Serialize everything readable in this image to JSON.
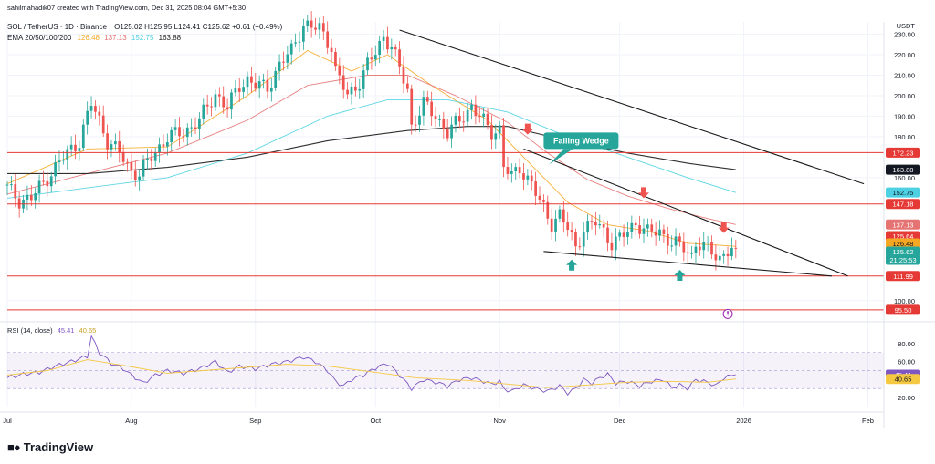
{
  "header": {
    "author_line": "sahilmahadik07 created with TradingView.com, Dec 31, 2025 08:04 GMT+5:30",
    "symbol_line": "SOL / TetherUS · 1D · Binance",
    "ohlc": "O125.02 H125.95 L124.41 C125.62 +0.61 (+0.49%)",
    "ema_label": "EMA 20/50/100/200",
    "ema_values": [
      "126.48",
      "137.13",
      "152.75",
      "163.88"
    ]
  },
  "logo_text": "TradingView",
  "colors": {
    "up": "#26a69a",
    "down": "#ef5350",
    "ema20": "#f5a623",
    "ema50": "#e57373",
    "ema100": "#4dd0e1",
    "ema200": "#1a1a1a",
    "hline": "#e53935",
    "wedge": "#1a1a1a",
    "rsi": "#7e57c2",
    "rsi_ma": "#f5c842",
    "callout": "#26a69a"
  },
  "chart_data": [
    {
      "type": "candlestick",
      "title": "SOL / TetherUS · 1D · Binance",
      "currency": "USDT",
      "x_tick_labels": [
        "Jul",
        "Aug",
        "Sep",
        "Oct",
        "Nov",
        "Dec",
        "2026",
        "Feb"
      ],
      "y_tick_labels": [
        "230.00",
        "220.00",
        "210.00",
        "200.00",
        "190.00",
        "180.00",
        "160.00",
        "100.00"
      ],
      "ylim": [
        91,
        236
      ],
      "x_range_days": [
        0,
        219
      ],
      "x_month_starts": {
        "Jul": 0,
        "Aug": 31,
        "Sep": 62,
        "Oct": 92,
        "Nov": 123,
        "Dec": 153,
        "2026": 184,
        "Feb": 215
      },
      "price_anchors": [
        [
          0,
          155
        ],
        [
          3,
          149
        ],
        [
          6,
          150
        ],
        [
          10,
          160
        ],
        [
          14,
          170
        ],
        [
          18,
          178
        ],
        [
          21,
          196
        ],
        [
          23,
          188
        ],
        [
          25,
          178
        ],
        [
          28,
          172
        ],
        [
          31,
          163
        ],
        [
          33,
          162
        ],
        [
          36,
          170
        ],
        [
          40,
          180
        ],
        [
          44,
          182
        ],
        [
          48,
          188
        ],
        [
          52,
          201
        ],
        [
          55,
          194
        ],
        [
          58,
          205
        ],
        [
          60,
          208
        ],
        [
          62,
          205
        ],
        [
          65,
          204
        ],
        [
          68,
          215
        ],
        [
          71,
          222
        ],
        [
          74,
          235
        ],
        [
          76,
          233
        ],
        [
          78,
          233
        ],
        [
          81,
          224
        ],
        [
          82,
          212
        ],
        [
          85,
          200
        ],
        [
          88,
          207
        ],
        [
          90,
          215
        ],
        [
          92,
          221
        ],
        [
          94,
          229
        ],
        [
          96,
          224
        ],
        [
          98,
          213
        ],
        [
          100,
          203
        ],
        [
          101,
          185
        ],
        [
          104,
          196
        ],
        [
          107,
          190
        ],
        [
          110,
          182
        ],
        [
          113,
          188
        ],
        [
          116,
          195
        ],
        [
          119,
          187
        ],
        [
          121,
          182
        ],
        [
          123,
          184
        ],
        [
          124,
          166
        ],
        [
          126,
          160
        ],
        [
          128,
          165
        ],
        [
          131,
          157
        ],
        [
          133,
          148
        ],
        [
          136,
          138
        ],
        [
          138,
          142
        ],
        [
          140,
          135
        ],
        [
          142,
          126
        ],
        [
          144,
          135
        ],
        [
          147,
          138
        ],
        [
          149,
          134
        ],
        [
          151,
          128
        ],
        [
          153,
          130
        ],
        [
          155,
          134
        ],
        [
          157,
          138
        ],
        [
          160,
          133
        ],
        [
          163,
          134
        ],
        [
          166,
          128
        ],
        [
          169,
          126
        ],
        [
          171,
          122
        ],
        [
          172,
          128
        ],
        [
          174,
          126
        ],
        [
          176,
          124
        ],
        [
          178,
          121
        ],
        [
          180,
          124
        ],
        [
          182,
          125.62
        ]
      ],
      "last_close": 125.62
    },
    {
      "type": "line",
      "title": "EMA 20/50/100/200",
      "series": [
        {
          "name": "20",
          "last": 126.48,
          "points": [
            [
              0,
              157
            ],
            [
              20,
              174
            ],
            [
              40,
              175
            ],
            [
              60,
              200
            ],
            [
              75,
              222
            ],
            [
              86,
              212
            ],
            [
              95,
              220
            ],
            [
              106,
              205
            ],
            [
              120,
              188
            ],
            [
              130,
              168
            ],
            [
              140,
              148
            ],
            [
              150,
              137
            ],
            [
              160,
              134
            ],
            [
              170,
              128
            ],
            [
              182,
              126.48
            ]
          ]
        },
        {
          "name": "50",
          "last": 137.13,
          "points": [
            [
              0,
              152
            ],
            [
              20,
              162
            ],
            [
              40,
              172
            ],
            [
              60,
              188
            ],
            [
              75,
              205
            ],
            [
              90,
              210
            ],
            [
              100,
              210
            ],
            [
              112,
              200
            ],
            [
              125,
              187
            ],
            [
              135,
              172
            ],
            [
              145,
              159
            ],
            [
              155,
              151
            ],
            [
              165,
              145
            ],
            [
              175,
              140
            ],
            [
              182,
              137.13
            ]
          ]
        },
        {
          "name": "100",
          "last": 152.75,
          "points": [
            [
              0,
              150
            ],
            [
              20,
              155
            ],
            [
              40,
              160
            ],
            [
              60,
              172
            ],
            [
              80,
              190
            ],
            [
              95,
              198
            ],
            [
              110,
              198
            ],
            [
              125,
              192
            ],
            [
              140,
              180
            ],
            [
              155,
              170
            ],
            [
              170,
              160
            ],
            [
              182,
              152.75
            ]
          ]
        },
        {
          "name": "200",
          "last": 163.88,
          "points": [
            [
              0,
              162
            ],
            [
              20,
              162
            ],
            [
              40,
              165
            ],
            [
              60,
              170
            ],
            [
              80,
              178
            ],
            [
              100,
              183
            ],
            [
              115,
              185
            ],
            [
              125,
              185
            ],
            [
              140,
              178
            ],
            [
              155,
              172
            ],
            [
              170,
              167
            ],
            [
              182,
              163.88
            ]
          ]
        }
      ]
    },
    {
      "type": "line",
      "title": "RSI (14, close)",
      "ylim": [
        10,
        95
      ],
      "y_tick_labels": [
        "80.00",
        "60.00",
        "20.00"
      ],
      "series": [
        {
          "name": "RSI",
          "last": 45.41,
          "points": [
            [
              0,
              42
            ],
            [
              4,
              46
            ],
            [
              8,
              48
            ],
            [
              12,
              55
            ],
            [
              16,
              60
            ],
            [
              20,
              66
            ],
            [
              21,
              88
            ],
            [
              23,
              70
            ],
            [
              26,
              58
            ],
            [
              29,
              52
            ],
            [
              31,
              45
            ],
            [
              34,
              36
            ],
            [
              37,
              45
            ],
            [
              40,
              50
            ],
            [
              44,
              47
            ],
            [
              48,
              52
            ],
            [
              52,
              60
            ],
            [
              55,
              48
            ],
            [
              58,
              55
            ],
            [
              62,
              52
            ],
            [
              66,
              57
            ],
            [
              70,
              60
            ],
            [
              74,
              65
            ],
            [
              77,
              60
            ],
            [
              80,
              50
            ],
            [
              82,
              38
            ],
            [
              84,
              33
            ],
            [
              86,
              40
            ],
            [
              89,
              45
            ],
            [
              92,
              53
            ],
            [
              95,
              58
            ],
            [
              98,
              45
            ],
            [
              101,
              30
            ],
            [
              104,
              40
            ],
            [
              107,
              37
            ],
            [
              110,
              33
            ],
            [
              113,
              40
            ],
            [
              116,
              42
            ],
            [
              119,
              38
            ],
            [
              121,
              35
            ],
            [
              123,
              38
            ],
            [
              124,
              30
            ],
            [
              126,
              27
            ],
            [
              129,
              34
            ],
            [
              132,
              30
            ],
            [
              135,
              27
            ],
            [
              138,
              33
            ],
            [
              140,
              25
            ],
            [
              142,
              30
            ],
            [
              144,
              40
            ],
            [
              146,
              36
            ],
            [
              148,
              42
            ],
            [
              150,
              46
            ],
            [
              152,
              36
            ],
            [
              155,
              38
            ],
            [
              158,
              33
            ],
            [
              161,
              38
            ],
            [
              164,
              40
            ],
            [
              166,
              31
            ],
            [
              168,
              34
            ],
            [
              170,
              30
            ],
            [
              172,
              40
            ],
            [
              175,
              37
            ],
            [
              177,
              33
            ],
            [
              179,
              42
            ],
            [
              182,
              45.41
            ]
          ]
        },
        {
          "name": "RSI-based MA",
          "last": 40.65,
          "points": [
            [
              0,
              45
            ],
            [
              10,
              50
            ],
            [
              20,
              62
            ],
            [
              30,
              55
            ],
            [
              40,
              47
            ],
            [
              55,
              52
            ],
            [
              70,
              57
            ],
            [
              80,
              55
            ],
            [
              92,
              48
            ],
            [
              102,
              42
            ],
            [
              115,
              39
            ],
            [
              125,
              35
            ],
            [
              135,
              31
            ],
            [
              145,
              34
            ],
            [
              155,
              37
            ],
            [
              165,
              38
            ],
            [
              175,
              37
            ],
            [
              182,
              40.65
            ]
          ]
        }
      ],
      "bands": [
        70,
        30
      ]
    }
  ],
  "labels": {
    "price_axis_currency": "USDT",
    "horizontal_levels": [
      "172.23",
      "147.18",
      "111.99",
      "95.50"
    ],
    "price_tags": [
      {
        "text": "172.23",
        "kind": "hline"
      },
      {
        "text": "163.88",
        "kind": "ema200"
      },
      {
        "text": "152.75",
        "kind": "ema100"
      },
      {
        "text": "147.18",
        "kind": "hline"
      },
      {
        "text": "137.13",
        "kind": "ema50"
      },
      {
        "text": "125.64",
        "kind": "hline"
      },
      {
        "text": "126.48",
        "kind": "ema20"
      },
      {
        "text": "125.62",
        "kind": "last"
      },
      {
        "text": "21:25:53",
        "kind": "countdown"
      },
      {
        "text": "111.99",
        "kind": "hline"
      },
      {
        "text": "95.50",
        "kind": "hline"
      }
    ],
    "rsi_tags": [
      {
        "text": "45.41",
        "kind": "rsi"
      },
      {
        "text": "40.65",
        "kind": "rsi_ma"
      }
    ],
    "callout": "Falling Wedge",
    "rsi_header": "RSI (14, close)",
    "rsi_header_values": [
      "45.41",
      "40.65"
    ]
  }
}
